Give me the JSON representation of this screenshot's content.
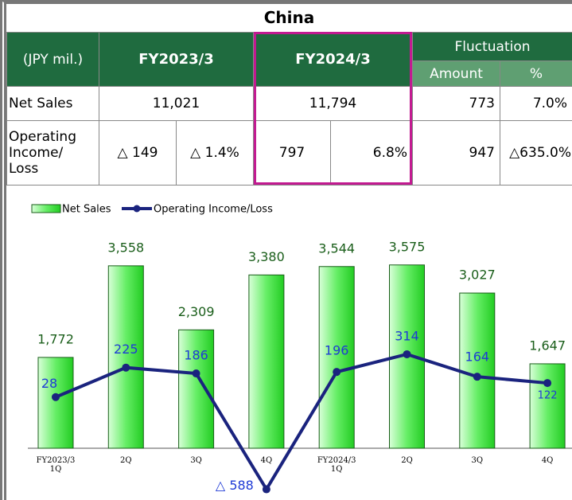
{
  "table": {
    "title": "China",
    "unit": "(JPY mil.)",
    "periods": [
      "FY2023/3",
      "FY2024/3"
    ],
    "fluctuation": "Fluctuation",
    "fluct_cols": [
      "Amount",
      "%"
    ],
    "rows": [
      {
        "label": "Net Sales",
        "cells": [
          "11,021",
          "11,794",
          "773",
          "7.0%"
        ]
      },
      {
        "label": "Operating\nIncome/\nLoss",
        "cells": [
          "△ 149",
          "△ 1.4%",
          "797",
          "6.8%",
          "947",
          "△635.0%"
        ]
      }
    ]
  },
  "chart_data": {
    "type": "bar_line",
    "categories": [
      "FY2023/3\n1Q",
      "2Q",
      "3Q",
      "4Q",
      "FY2024/3\n1Q",
      "2Q",
      "3Q",
      "4Q"
    ],
    "series": [
      {
        "name": "Net Sales",
        "type": "bar",
        "color": "#33dd33",
        "values": [
          1772,
          3558,
          2309,
          3380,
          3544,
          3575,
          3027,
          1647
        ],
        "value_labels": [
          "1,772",
          "3,558",
          "2,309",
          "3,380",
          "3,544",
          "3,575",
          "3,027",
          "1,647"
        ]
      },
      {
        "name": "Operating Income/Loss",
        "type": "line",
        "axis": "y2",
        "color": "#1a237e",
        "values": [
          28,
          225,
          186,
          -588,
          196,
          314,
          164,
          122
        ],
        "value_labels": [
          "28",
          "225",
          "186",
          "△ 588",
          "196",
          "314",
          "164",
          "122"
        ]
      }
    ]
  }
}
